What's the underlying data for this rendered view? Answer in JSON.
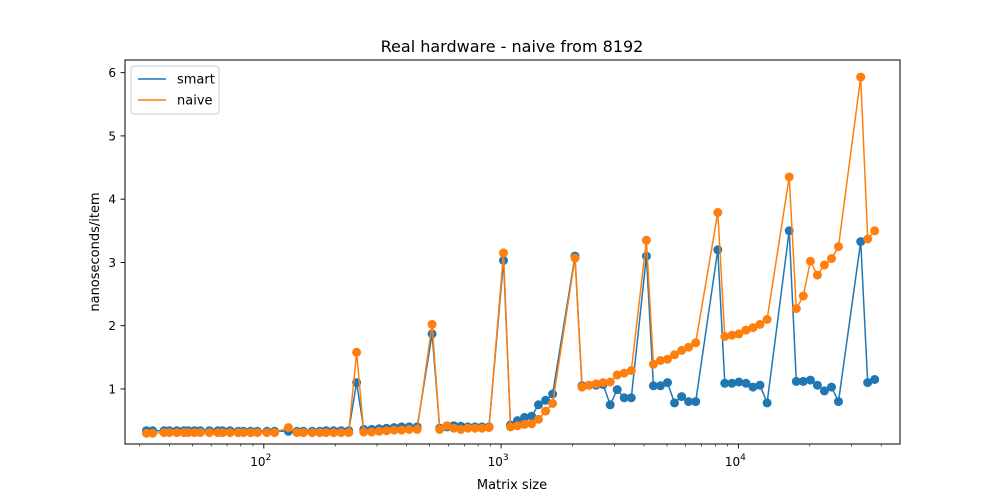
{
  "chart_data": {
    "type": "line",
    "title": "Real hardware - naive from 8192",
    "xlabel": "Matrix size",
    "ylabel": "nanoseconds/item",
    "xscale": "log",
    "xlim": [
      26,
      48000
    ],
    "ylim": [
      0.13,
      6.2
    ],
    "x_ticks": [
      {
        "value": 100,
        "base": "10",
        "exp": "2"
      },
      {
        "value": 1000,
        "base": "10",
        "exp": "3"
      },
      {
        "value": 10000,
        "base": "10",
        "exp": "4"
      }
    ],
    "y_ticks": [
      1,
      2,
      3,
      4,
      5,
      6
    ],
    "grid": false,
    "legend_position": "upper-left",
    "markers": true,
    "series": [
      {
        "name": "smart",
        "color": "#1f77b4",
        "points": [
          [
            32,
            0.34
          ],
          [
            34,
            0.34
          ],
          [
            38,
            0.34
          ],
          [
            40,
            0.34
          ],
          [
            43,
            0.34
          ],
          [
            46,
            0.34
          ],
          [
            48,
            0.34
          ],
          [
            51,
            0.34
          ],
          [
            54,
            0.34
          ],
          [
            59,
            0.34
          ],
          [
            64,
            0.34
          ],
          [
            67,
            0.34
          ],
          [
            72,
            0.34
          ],
          [
            78,
            0.33
          ],
          [
            82,
            0.33
          ],
          [
            88,
            0.33
          ],
          [
            94,
            0.33
          ],
          [
            103,
            0.33
          ],
          [
            111,
            0.33
          ],
          [
            127,
            0.33
          ],
          [
            138,
            0.33
          ],
          [
            147,
            0.33
          ],
          [
            160,
            0.33
          ],
          [
            172,
            0.33
          ],
          [
            183,
            0.34
          ],
          [
            197,
            0.34
          ],
          [
            212,
            0.34
          ],
          [
            228,
            0.34
          ],
          [
            246,
            1.1
          ],
          [
            264,
            0.36
          ],
          [
            285,
            0.36
          ],
          [
            306,
            0.37
          ],
          [
            329,
            0.38
          ],
          [
            354,
            0.39
          ],
          [
            381,
            0.4
          ],
          [
            410,
            0.4
          ],
          [
            443,
            0.4
          ],
          [
            512,
            1.87
          ],
          [
            551,
            0.38
          ],
          [
            591,
            0.4
          ],
          [
            632,
            0.42
          ],
          [
            677,
            0.41
          ],
          [
            725,
            0.4
          ],
          [
            776,
            0.4
          ],
          [
            831,
            0.4
          ],
          [
            889,
            0.4
          ],
          [
            1024,
            3.03
          ],
          [
            1096,
            0.43
          ],
          [
            1173,
            0.5
          ],
          [
            1255,
            0.55
          ],
          [
            1344,
            0.57
          ],
          [
            1438,
            0.75
          ],
          [
            1540,
            0.82
          ],
          [
            1648,
            0.92
          ],
          [
            2048,
            3.1
          ],
          [
            2193,
            1.05
          ],
          [
            2348,
            1.06
          ],
          [
            2514,
            1.06
          ],
          [
            2691,
            1.07
          ],
          [
            2882,
            0.75
          ],
          [
            3086,
            0.99
          ],
          [
            3304,
            0.86
          ],
          [
            3537,
            0.86
          ],
          [
            4096,
            3.1
          ],
          [
            4386,
            1.05
          ],
          [
            4696,
            1.05
          ],
          [
            5027,
            1.1
          ],
          [
            5383,
            0.78
          ],
          [
            5763,
            0.88
          ],
          [
            6171,
            0.8
          ],
          [
            6607,
            0.8
          ],
          [
            8192,
            3.2
          ],
          [
            8771,
            1.09
          ],
          [
            9392,
            1.09
          ],
          [
            10056,
            1.11
          ],
          [
            10766,
            1.09
          ],
          [
            11527,
            1.03
          ],
          [
            12342,
            1.06
          ],
          [
            13215,
            0.78
          ],
          [
            16384,
            3.5
          ],
          [
            17543,
            1.12
          ],
          [
            18783,
            1.12
          ],
          [
            20111,
            1.14
          ],
          [
            21533,
            1.06
          ],
          [
            23055,
            0.97
          ],
          [
            24685,
            1.03
          ],
          [
            26430,
            0.8
          ],
          [
            32768,
            3.33
          ],
          [
            35086,
            1.1
          ],
          [
            37566,
            1.15
          ]
        ]
      },
      {
        "name": "naive",
        "color": "#ff7f0e",
        "points": [
          [
            32,
            0.3
          ],
          [
            34,
            0.3
          ],
          [
            38,
            0.31
          ],
          [
            40,
            0.31
          ],
          [
            43,
            0.31
          ],
          [
            46,
            0.31
          ],
          [
            48,
            0.31
          ],
          [
            51,
            0.31
          ],
          [
            54,
            0.31
          ],
          [
            59,
            0.31
          ],
          [
            64,
            0.31
          ],
          [
            67,
            0.31
          ],
          [
            72,
            0.31
          ],
          [
            78,
            0.31
          ],
          [
            82,
            0.31
          ],
          [
            88,
            0.31
          ],
          [
            94,
            0.31
          ],
          [
            103,
            0.31
          ],
          [
            111,
            0.31
          ],
          [
            127,
            0.39
          ],
          [
            138,
            0.31
          ],
          [
            147,
            0.31
          ],
          [
            160,
            0.31
          ],
          [
            172,
            0.31
          ],
          [
            183,
            0.31
          ],
          [
            197,
            0.31
          ],
          [
            212,
            0.31
          ],
          [
            228,
            0.31
          ],
          [
            246,
            1.58
          ],
          [
            264,
            0.32
          ],
          [
            285,
            0.32
          ],
          [
            306,
            0.33
          ],
          [
            329,
            0.34
          ],
          [
            354,
            0.35
          ],
          [
            381,
            0.35
          ],
          [
            410,
            0.36
          ],
          [
            443,
            0.36
          ],
          [
            512,
            2.02
          ],
          [
            551,
            0.36
          ],
          [
            591,
            0.42
          ],
          [
            632,
            0.38
          ],
          [
            677,
            0.36
          ],
          [
            725,
            0.38
          ],
          [
            776,
            0.38
          ],
          [
            831,
            0.38
          ],
          [
            889,
            0.39
          ],
          [
            1024,
            3.15
          ],
          [
            1096,
            0.4
          ],
          [
            1173,
            0.42
          ],
          [
            1255,
            0.44
          ],
          [
            1344,
            0.45
          ],
          [
            1438,
            0.52
          ],
          [
            1540,
            0.65
          ],
          [
            1648,
            0.77
          ],
          [
            2048,
            3.07
          ],
          [
            2193,
            1.03
          ],
          [
            2348,
            1.06
          ],
          [
            2514,
            1.08
          ],
          [
            2691,
            1.1
          ],
          [
            2882,
            1.11
          ],
          [
            3086,
            1.22
          ],
          [
            3304,
            1.25
          ],
          [
            3537,
            1.29
          ],
          [
            4096,
            3.35
          ],
          [
            4386,
            1.39
          ],
          [
            4696,
            1.45
          ],
          [
            5027,
            1.47
          ],
          [
            5383,
            1.54
          ],
          [
            5763,
            1.61
          ],
          [
            6171,
            1.66
          ],
          [
            6607,
            1.73
          ],
          [
            8192,
            3.79
          ],
          [
            8771,
            1.83
          ],
          [
            9392,
            1.85
          ],
          [
            10056,
            1.87
          ],
          [
            10766,
            1.93
          ],
          [
            11527,
            1.97
          ],
          [
            12342,
            2.02
          ],
          [
            13215,
            2.1
          ],
          [
            16384,
            4.35
          ],
          [
            17543,
            2.27
          ],
          [
            18783,
            2.47
          ],
          [
            20111,
            3.02
          ],
          [
            21533,
            2.8
          ],
          [
            23055,
            2.96
          ],
          [
            24685,
            3.06
          ],
          [
            26430,
            3.25
          ],
          [
            32768,
            5.93
          ],
          [
            35086,
            3.37
          ],
          [
            37566,
            3.5
          ]
        ]
      }
    ]
  }
}
